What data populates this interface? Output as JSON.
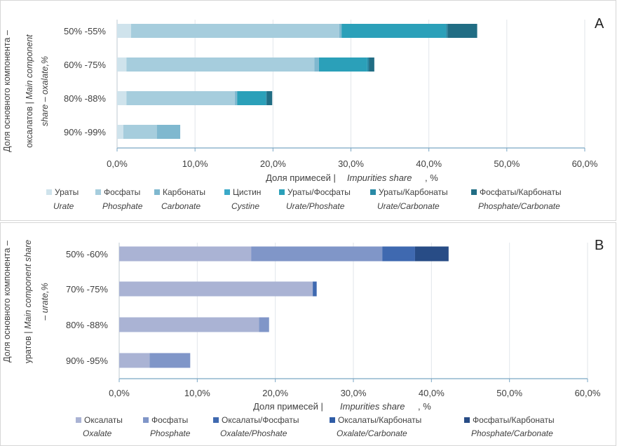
{
  "chart_data": [
    {
      "type": "bar",
      "orientation": "horizontal",
      "stacked": true,
      "panel_label": "A",
      "categories": [
        "50% -55%",
        "60% -75%",
        "80% -88%",
        "90% -99%"
      ],
      "series": [
        {
          "name": "Ураты",
          "name_en": "Urate",
          "color": "#cfe3ec",
          "values": [
            1.8,
            1.2,
            1.2,
            0.8
          ]
        },
        {
          "name": "Фосфаты",
          "name_en": "Phosphate",
          "color": "#a6cddd",
          "values": [
            26.7,
            24.1,
            13.9,
            4.3
          ]
        },
        {
          "name": "Карбонаты",
          "name_en": "Carbonate",
          "color": "#7fb8cf",
          "values": [
            0.3,
            0.6,
            0.3,
            3.0
          ]
        },
        {
          "name": "Цистин",
          "name_en": "Cystine",
          "color": "#3aa9c8",
          "values": [
            0,
            0,
            0,
            0
          ]
        },
        {
          "name": "Ураты/Фосфаты",
          "name_en": "Urate/Phoshate",
          "color": "#2ba0b9",
          "values": [
            13.4,
            6.2,
            3.7,
            0
          ]
        },
        {
          "name": "Ураты/Карбонаты",
          "name_en": "Urate/Carbonate",
          "color": "#2a8aa6",
          "values": [
            0.2,
            0.2,
            0.1,
            0
          ]
        },
        {
          "name": "Фосфаты/Карбонаты",
          "name_en": "Phosphate/Carbonate",
          "color": "#216d84",
          "values": [
            3.8,
            0.7,
            0.7,
            0
          ]
        }
      ],
      "xlim": [
        0,
        60
      ],
      "xticks": [
        "0,0%",
        "10,0%",
        "20,0%",
        "30,0%",
        "40,0%",
        "50,0%",
        "60,0%"
      ],
      "xlabel": {
        "ru": "Доля примесей |",
        "en": "Impurities share",
        "unit": ", %"
      },
      "ylabel": {
        "ru_line1": "Доля основного компонента –",
        "ru_line2": "оксалатов  |",
        "en_line1": "Main component",
        "en_line2": "share  – oxalate,%"
      },
      "grid": true,
      "legend_position": "bottom"
    },
    {
      "type": "bar",
      "orientation": "horizontal",
      "stacked": true,
      "panel_label": "B",
      "categories": [
        "50% -60%",
        "70% -75%",
        "80% -88%",
        "90% -95%"
      ],
      "series": [
        {
          "name": "Оксалаты",
          "name_en": "Oxalate",
          "color": "#aab3d4",
          "values": [
            16.9,
            24.8,
            17.9,
            3.9
          ]
        },
        {
          "name": "Фосфаты",
          "name_en": "Phosphate",
          "color": "#8096c8",
          "values": [
            16.8,
            0,
            1.3,
            5.2
          ]
        },
        {
          "name": "Оксалаты/Фосфаты",
          "name_en": "Oxalate/Phoshate",
          "color": "#3f69b0",
          "values": [
            4.2,
            0.5,
            0,
            0
          ]
        },
        {
          "name": "Оксалаты/Карбонаты",
          "name_en": "Oxalate/Carbonate",
          "color": "#2f5ca6",
          "values": [
            0,
            0,
            0,
            0
          ]
        },
        {
          "name": "Фосфаты/Карбонаты",
          "name_en": "Phosphate/Carbonate",
          "color": "#284c86",
          "values": [
            4.3,
            0,
            0,
            0
          ]
        }
      ],
      "xlim": [
        0,
        60
      ],
      "xticks": [
        "0,0%",
        "10,0%",
        "20,0%",
        "30,0%",
        "40,0%",
        "50,0%",
        "60,0%"
      ],
      "xlabel": {
        "ru": "Доля примесей |",
        "en": "Impurities share",
        "unit": ", %"
      },
      "ylabel": {
        "ru_line1": "Доля основного компонента –",
        "ru_line2": "уратов |",
        "en_line1": "Main component share",
        "en_line2": "– urate,%"
      },
      "grid": true,
      "legend_position": "bottom"
    }
  ]
}
